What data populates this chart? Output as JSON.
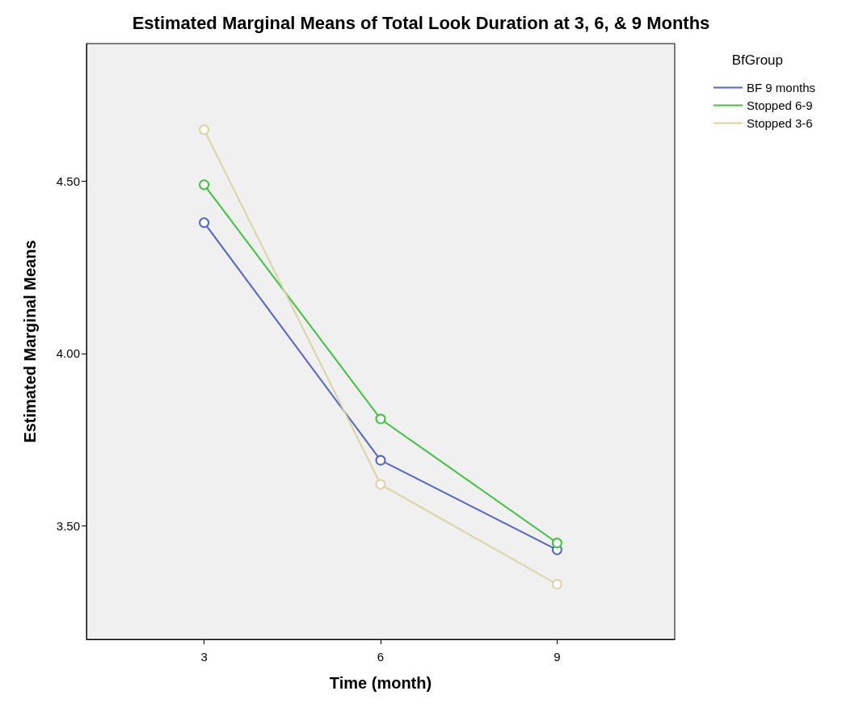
{
  "chart_data": {
    "type": "line",
    "title": "Estimated Marginal Means of Total Look Duration at 3, 6, & 9 Months",
    "xlabel": "Time (month)",
    "ylabel": "Estimated Marginal Means",
    "legend_title": "BfGroup",
    "x": [
      3,
      6,
      9
    ],
    "series": [
      {
        "name": "BF 9 months",
        "color": "#5567c4",
        "values": [
          4.38,
          3.69,
          3.43
        ]
      },
      {
        "name": "Stopped 6-9",
        "color": "#3fc23f",
        "values": [
          4.49,
          3.81,
          3.45
        ]
      },
      {
        "name": "Stopped 3-6",
        "color": "#d9d4a3",
        "values": [
          4.65,
          3.62,
          3.33
        ]
      }
    ],
    "xlim": [
      1,
      11
    ],
    "xticks": [
      3,
      6,
      9
    ],
    "ylim": [
      3.17,
      4.9
    ],
    "yticks": [
      {
        "value": 3.5,
        "label": "3.50"
      },
      {
        "value": 4.0,
        "label": "4.00"
      },
      {
        "value": 4.5,
        "label": "4.50"
      }
    ],
    "grid": false,
    "legend": "top right",
    "marker": "circle",
    "line_style": "solid"
  }
}
